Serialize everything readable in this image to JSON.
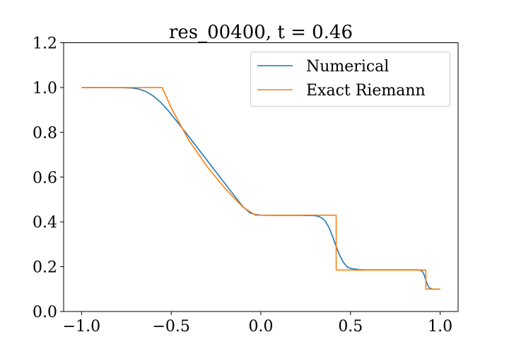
{
  "chart_data": {
    "type": "line",
    "title": "res_00400, t = 0.46",
    "xlabel": "",
    "ylabel": "",
    "xlim": [
      -1.1,
      1.1
    ],
    "ylim": [
      0.0,
      1.2
    ],
    "x_ticks": [
      -1.0,
      -0.5,
      0.0,
      0.5,
      1.0
    ],
    "x_tick_labels": [
      "−1.0",
      "−0.5",
      "0.0",
      "0.5",
      "1.0"
    ],
    "y_ticks": [
      0.0,
      0.2,
      0.4,
      0.6,
      0.8,
      1.0,
      1.2
    ],
    "y_tick_labels": [
      "0.0",
      "0.2",
      "0.4",
      "0.6",
      "0.8",
      "1.0",
      "1.2"
    ],
    "grid": false,
    "legend_position": "top-right",
    "series": [
      {
        "name": "Numerical",
        "color": "#1f77b4",
        "x": [
          -1.0,
          -0.8,
          -0.72,
          -0.68,
          -0.64,
          -0.6,
          -0.56,
          -0.52,
          -0.48,
          -0.44,
          -0.4,
          -0.35,
          -0.3,
          -0.25,
          -0.2,
          -0.15,
          -0.1,
          -0.06,
          -0.03,
          0.0,
          0.05,
          0.1,
          0.2,
          0.3,
          0.32,
          0.34,
          0.36,
          0.38,
          0.4,
          0.42,
          0.44,
          0.46,
          0.48,
          0.5,
          0.55,
          0.6,
          0.7,
          0.8,
          0.88,
          0.9,
          0.91,
          0.92,
          0.93,
          0.94,
          0.96,
          1.0
        ],
        "y": [
          1.0,
          1.0,
          0.998,
          0.993,
          0.982,
          0.962,
          0.935,
          0.9,
          0.86,
          0.82,
          0.779,
          0.727,
          0.675,
          0.623,
          0.571,
          0.519,
          0.468,
          0.44,
          0.433,
          0.43,
          0.429,
          0.429,
          0.429,
          0.428,
          0.425,
          0.418,
          0.403,
          0.375,
          0.335,
          0.29,
          0.25,
          0.22,
          0.2,
          0.192,
          0.187,
          0.186,
          0.186,
          0.186,
          0.186,
          0.18,
          0.165,
          0.14,
          0.118,
          0.105,
          0.1,
          0.1
        ]
      },
      {
        "name": "Exact Riemann",
        "color": "#ff7f0e",
        "x": [
          -1.0,
          -0.55,
          -0.5,
          -0.4,
          -0.3,
          -0.2,
          -0.1,
          -0.03,
          0.42,
          0.42,
          0.92,
          0.92,
          1.0
        ],
        "y": [
          1.0,
          1.0,
          0.909,
          0.762,
          0.647,
          0.55,
          0.466,
          0.43,
          0.43,
          0.185,
          0.185,
          0.1,
          0.1
        ]
      }
    ]
  }
}
